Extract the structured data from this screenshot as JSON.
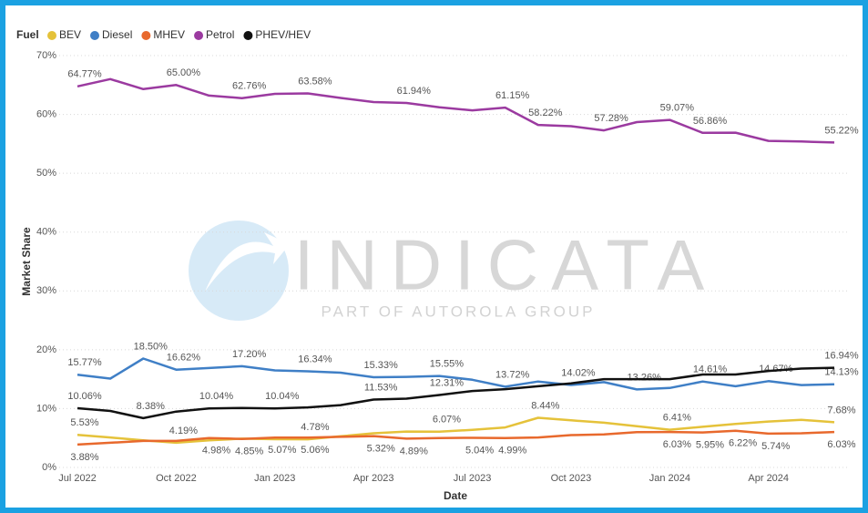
{
  "chart_data": {
    "type": "line",
    "legend_title": "Fuel",
    "ylabel": "Market Share",
    "xlabel": "Date",
    "watermark": "INDICATA",
    "watermark_subtitle": "PART OF AUTOROLA GROUP",
    "categories": [
      "Jul 2022",
      null,
      null,
      "Oct 2022",
      null,
      null,
      "Jan 2023",
      null,
      null,
      "Apr 2023",
      null,
      null,
      "Jul 2023",
      null,
      null,
      "Oct 2023",
      null,
      null,
      "Jan 2024",
      null,
      null,
      "Apr 2024",
      null,
      null
    ],
    "ylim": [
      0,
      70
    ],
    "yticks": [
      {
        "value": 0,
        "label": "0%"
      },
      {
        "value": 10,
        "label": "10%"
      },
      {
        "value": 20,
        "label": "20%"
      },
      {
        "value": 30,
        "label": "30%"
      },
      {
        "value": 40,
        "label": "40%"
      },
      {
        "value": 50,
        "label": "50%"
      },
      {
        "value": 60,
        "label": "60%"
      },
      {
        "value": 70,
        "label": "70%"
      }
    ],
    "grid": true,
    "legend": "top-left",
    "series": [
      {
        "name": "BEV",
        "color": "#e5c23a",
        "values": [
          5.53,
          5.1,
          4.6,
          4.19,
          4.6,
          4.9,
          4.8,
          4.78,
          5.3,
          5.8,
          6.1,
          6.07,
          6.4,
          6.8,
          8.44,
          8.0,
          7.6,
          7.0,
          6.41,
          6.9,
          7.4,
          7.8,
          8.1,
          7.68
        ],
        "value_labels": [
          "5.53%",
          null,
          null,
          "4.19%",
          null,
          null,
          null,
          "4.78%",
          null,
          null,
          null,
          "6.07%",
          null,
          null,
          "8.44%",
          null,
          null,
          null,
          "6.41%",
          null,
          null,
          null,
          null,
          "7.68%"
        ]
      },
      {
        "name": "Diesel",
        "color": "#3f7fc6",
        "values": [
          15.77,
          15.1,
          18.5,
          16.62,
          16.9,
          17.2,
          16.5,
          16.34,
          16.1,
          15.33,
          15.4,
          15.55,
          14.9,
          13.72,
          14.6,
          14.02,
          14.5,
          13.26,
          13.5,
          14.61,
          13.8,
          14.67,
          14.0,
          14.13
        ],
        "value_labels": [
          "15.77%",
          null,
          "18.50%",
          "16.62%",
          null,
          "17.20%",
          null,
          "16.34%",
          null,
          "15.33%",
          null,
          "15.55%",
          null,
          "13.72%",
          null,
          "14.02%",
          null,
          "13.26%",
          null,
          "14.61%",
          null,
          "14.67%",
          null,
          "14.13%"
        ]
      },
      {
        "name": "MHEV",
        "color": "#e8692d",
        "values": [
          3.88,
          4.2,
          4.5,
          4.5,
          4.98,
          4.85,
          5.07,
          5.06,
          5.2,
          5.32,
          4.89,
          5.0,
          5.04,
          4.99,
          5.1,
          5.5,
          5.6,
          6.0,
          6.03,
          5.95,
          6.22,
          5.74,
          5.8,
          6.03
        ],
        "value_labels": [
          "3.88%",
          null,
          null,
          null,
          "4.98%",
          "4.85%",
          "5.07%",
          "5.06%",
          null,
          "5.32%",
          "4.89%",
          null,
          "5.04%",
          "4.99%",
          null,
          null,
          null,
          null,
          "6.03%",
          "5.95%",
          "6.22%",
          "5.74%",
          null,
          "6.03%"
        ]
      },
      {
        "name": "Petrol",
        "color": "#9b3aa0",
        "values": [
          64.77,
          66.0,
          64.3,
          65.0,
          63.2,
          62.76,
          63.5,
          63.58,
          62.8,
          62.1,
          61.94,
          61.2,
          60.7,
          61.15,
          58.22,
          58.0,
          57.28,
          58.7,
          59.07,
          56.86,
          56.9,
          55.5,
          55.4,
          55.22
        ],
        "value_labels": [
          "64.77%",
          null,
          null,
          "65.00%",
          null,
          "62.76%",
          null,
          "63.58%",
          null,
          null,
          "61.94%",
          null,
          null,
          "61.15%",
          "58.22%",
          null,
          "57.28%",
          null,
          "59.07%",
          "56.86%",
          null,
          null,
          null,
          "55.22%"
        ]
      },
      {
        "name": "PHEV/HEV",
        "color": "#111111",
        "values": [
          10.06,
          9.6,
          8.38,
          9.5,
          10.04,
          10.1,
          10.04,
          10.2,
          10.6,
          11.53,
          11.7,
          12.31,
          13.0,
          13.3,
          13.8,
          14.3,
          15.0,
          15.0,
          15.0,
          15.8,
          15.8,
          16.4,
          16.8,
          16.94
        ],
        "value_labels": [
          "10.06%",
          null,
          "8.38%",
          null,
          "10.04%",
          null,
          "10.04%",
          null,
          null,
          "11.53%",
          null,
          "12.31%",
          null,
          null,
          null,
          null,
          null,
          null,
          null,
          null,
          null,
          null,
          null,
          "16.94%"
        ]
      }
    ]
  }
}
